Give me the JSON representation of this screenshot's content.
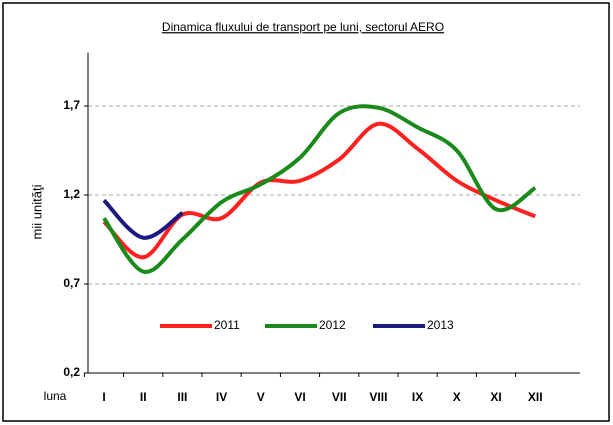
{
  "chart_data": {
    "type": "line",
    "title": "Dinamica fluxului de transport pe luni, sectorul AERO",
    "x_label": "luna",
    "y_label": "mii unităţi",
    "categories": [
      "I",
      "II",
      "III",
      "IV",
      "V",
      "VI",
      "VII",
      "VIII",
      "IX",
      "X",
      "XI",
      "XII"
    ],
    "series": [
      {
        "name": "2011",
        "color": "#ff2020",
        "values": [
          1.05,
          0.85,
          1.09,
          1.07,
          1.27,
          1.28,
          1.4,
          1.6,
          1.46,
          1.28,
          1.17,
          1.08
        ]
      },
      {
        "name": "2012",
        "color": "#1a8a1a",
        "values": [
          1.07,
          0.77,
          0.95,
          1.16,
          1.26,
          1.41,
          1.66,
          1.69,
          1.58,
          1.45,
          1.12,
          1.24
        ]
      },
      {
        "name": "2013",
        "color": "#1a1a80",
        "values": [
          1.17,
          0.96,
          1.1,
          null,
          null,
          null,
          null,
          null,
          null,
          null,
          null,
          null
        ]
      }
    ],
    "ylim": [
      0.2,
      2.0
    ],
    "yticks": [
      {
        "value": 0.2,
        "label": "0,2"
      },
      {
        "value": 0.7,
        "label": "0,7"
      },
      {
        "value": 1.2,
        "label": "1,2"
      },
      {
        "value": 1.7,
        "label": "1,7"
      }
    ],
    "grid": true,
    "legend": "bottom"
  }
}
